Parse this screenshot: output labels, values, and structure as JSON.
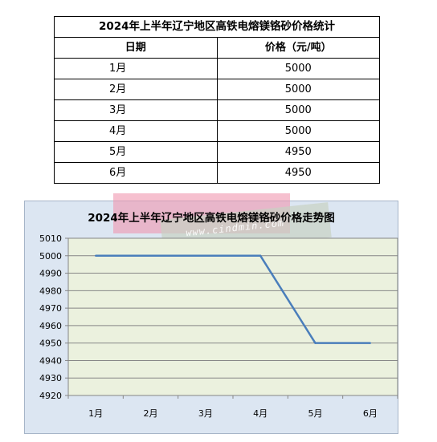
{
  "table": {
    "title": "2024年上半年辽宁地区高铁电熔镁铬砂价格统计",
    "headers": {
      "month": "日期",
      "price": "价格（元/吨）"
    },
    "rows": [
      {
        "month": "1月",
        "price": "5000"
      },
      {
        "month": "2月",
        "price": "5000"
      },
      {
        "month": "3月",
        "price": "5000"
      },
      {
        "month": "4月",
        "price": "5000"
      },
      {
        "month": "5月",
        "price": "4950"
      },
      {
        "month": "6月",
        "price": "4950"
      }
    ]
  },
  "watermark": {
    "text": "www.cindmin.com"
  },
  "chart_data": {
    "type": "line",
    "title": "2024年上半年辽宁地区高铁电熔镁铬砂价格走势图",
    "categories": [
      "1月",
      "2月",
      "3月",
      "4月",
      "5月",
      "6月"
    ],
    "series": [
      {
        "values": [
          5000,
          5000,
          5000,
          5000,
          4950,
          4950
        ]
      }
    ],
    "ylim": [
      4920,
      5010
    ],
    "yticks": [
      5010,
      5000,
      4990,
      4980,
      4970,
      4960,
      4950,
      4940,
      4930,
      4920
    ],
    "grid": true,
    "colors": {
      "line": "#4a7ebb",
      "plot_bg": "#ebf1de",
      "panel_bg": "#dce6f2"
    }
  }
}
